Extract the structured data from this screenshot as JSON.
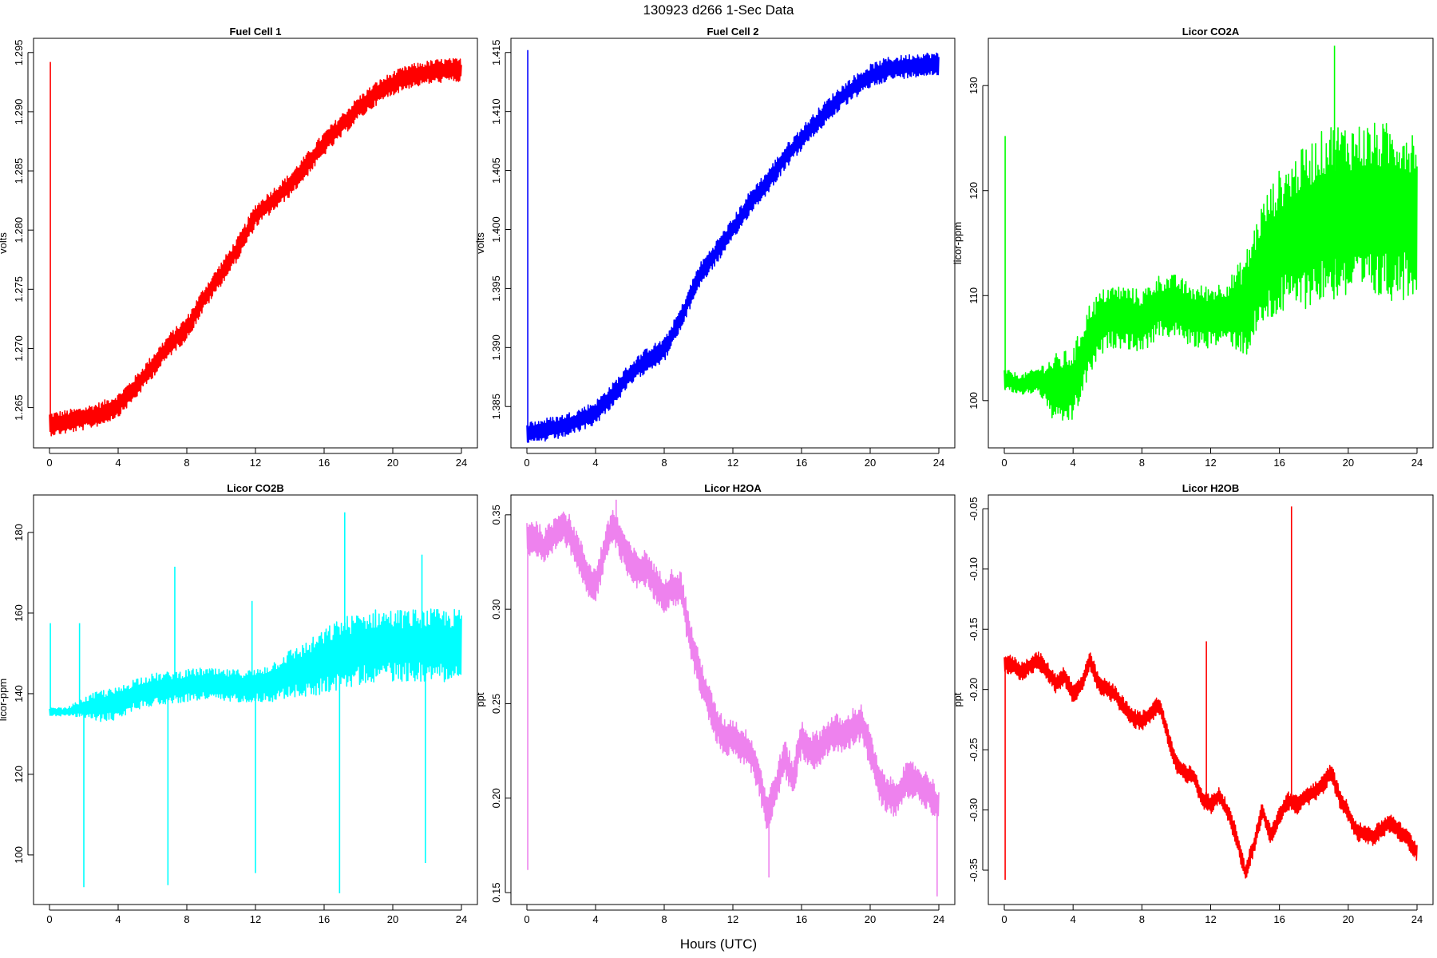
{
  "figure": {
    "title": "130923   d266   1-Sec Data",
    "xlabel": "Hours (UTC)"
  },
  "chart_data": [
    {
      "type": "line",
      "title": "Fuel Cell 1",
      "ylabel": "volts",
      "color": "#ff0000",
      "xlim": [
        0,
        24
      ],
      "xticks": [
        "0",
        "4",
        "8",
        "12",
        "16",
        "20",
        "24"
      ],
      "ylim": [
        1.2616,
        1.2962
      ],
      "yticks": [
        "1.265",
        "1.270",
        "1.275",
        "1.280",
        "1.285",
        "1.290",
        "1.295"
      ],
      "series": [
        {
          "x": [
            0,
            1,
            2,
            3,
            4,
            5,
            6,
            7,
            8,
            9,
            10,
            11,
            12,
            13,
            14,
            15,
            16,
            17,
            18,
            19,
            20,
            21,
            22,
            23,
            24
          ],
          "y": [
            1.2636,
            1.2638,
            1.2641,
            1.2645,
            1.2652,
            1.2667,
            1.2685,
            1.2703,
            1.2717,
            1.2742,
            1.2763,
            1.2785,
            1.2812,
            1.2825,
            1.2838,
            1.2855,
            1.2873,
            1.2888,
            1.2903,
            1.2915,
            1.2924,
            1.293,
            1.2933,
            1.2935,
            1.2935
          ],
          "spread": 0.001
        }
      ],
      "spikes": [
        {
          "x": 0.05,
          "y": [
            1.263,
            1.2942
          ]
        }
      ]
    },
    {
      "type": "line",
      "title": "Fuel Cell 2",
      "ylabel": "volts",
      "color": "#0000ff",
      "xlim": [
        0,
        24
      ],
      "xticks": [
        "0",
        "4",
        "8",
        "12",
        "16",
        "20",
        "24"
      ],
      "ylim": [
        1.3815,
        1.4162
      ],
      "yticks": [
        "1.385",
        "1.390",
        "1.395",
        "1.400",
        "1.405",
        "1.410",
        "1.415"
      ],
      "series": [
        {
          "x": [
            0,
            1,
            2,
            3,
            4,
            5,
            6,
            7,
            8,
            9,
            10,
            11,
            12,
            13,
            14,
            15,
            16,
            17,
            18,
            19,
            20,
            21,
            22,
            23,
            24
          ],
          "y": [
            1.3827,
            1.383,
            1.3833,
            1.3838,
            1.3845,
            1.386,
            1.3877,
            1.389,
            1.3898,
            1.3925,
            1.396,
            1.398,
            1.4,
            1.4023,
            1.404,
            1.406,
            1.4077,
            1.4093,
            1.4108,
            1.412,
            1.413,
            1.4136,
            1.4138,
            1.414,
            1.414
          ],
          "spread": 0.001
        }
      ],
      "spikes": [
        {
          "x": 0.05,
          "y": [
            1.3825,
            1.4152
          ]
        }
      ]
    },
    {
      "type": "line",
      "title": "Licor CO2A",
      "ylabel": "licor-ppm",
      "color": "#00ff00",
      "xlim": [
        0,
        24
      ],
      "xticks": [
        "0",
        "4",
        "8",
        "12",
        "16",
        "20",
        "24"
      ],
      "ylim": [
        95.5,
        134.5
      ],
      "yticks": [
        "100",
        "110",
        "120",
        "130"
      ],
      "series": [
        {
          "x": [
            0,
            1,
            2,
            3,
            4,
            5,
            6,
            7,
            8,
            9,
            10,
            11,
            12,
            13,
            14,
            15,
            16,
            17,
            18,
            19,
            20,
            21,
            22,
            23,
            24
          ],
          "y": [
            102,
            101.5,
            102,
            101,
            101.5,
            106,
            108,
            108,
            107.5,
            109,
            109,
            108,
            108,
            108.5,
            109,
            113,
            115,
            116,
            117,
            118,
            118,
            118,
            118,
            118,
            118
          ],
          "spread": [
            1,
            1,
            1.2,
            3.5,
            3.5,
            3.5,
            3,
            3,
            3,
            3,
            3,
            3,
            3,
            3,
            5,
            6,
            7,
            7.5,
            8,
            8.5,
            8.5,
            8.5,
            8.5,
            8.5,
            8
          ]
        }
      ],
      "spikes": [
        {
          "x": 0.05,
          "y": [
            101,
            125.2
          ]
        },
        {
          "x": 19.2,
          "y": [
            112,
            133.8
          ]
        }
      ]
    },
    {
      "type": "line",
      "title": "Licor CO2B",
      "ylabel": "licor-ppm",
      "color": "#00ffff",
      "xlim": [
        0,
        24
      ],
      "xticks": [
        "0",
        "4",
        "8",
        "12",
        "16",
        "20",
        "24"
      ],
      "ylim": [
        87.7,
        189.3
      ],
      "yticks": [
        "100",
        "120",
        "140",
        "160",
        "180"
      ],
      "series": [
        {
          "x": [
            0,
            1,
            2,
            3,
            4,
            5,
            6,
            7,
            8,
            9,
            10,
            11,
            12,
            13,
            14,
            15,
            16,
            17,
            18,
            19,
            20,
            21,
            22,
            23,
            24
          ],
          "y": [
            135.5,
            135.5,
            136.5,
            137,
            137.5,
            140,
            141,
            141.5,
            142,
            142.5,
            142,
            142,
            142,
            143,
            145,
            146,
            148,
            150,
            151,
            152,
            152,
            152,
            152,
            152,
            152
          ],
          "spread": [
            1,
            1,
            2.5,
            4,
            4,
            4,
            4,
            4,
            4,
            4,
            4,
            4,
            4,
            5,
            6,
            7,
            8,
            9,
            9,
            9,
            9,
            9,
            9,
            9,
            9
          ]
        }
      ],
      "spikes": [
        {
          "x": 0.05,
          "y": [
            136,
            157.5
          ]
        },
        {
          "x": 1.75,
          "y": [
            135,
            157.5
          ]
        },
        {
          "x": 2.0,
          "y": [
            92,
            137
          ]
        },
        {
          "x": 6.9,
          "y": [
            92.5,
            142
          ]
        },
        {
          "x": 7.3,
          "y": [
            140,
            171.5
          ]
        },
        {
          "x": 11.8,
          "y": [
            142,
            163
          ]
        },
        {
          "x": 12.0,
          "y": [
            95.5,
            142
          ]
        },
        {
          "x": 16.9,
          "y": [
            90.5,
            148
          ]
        },
        {
          "x": 17.2,
          "y": [
            148,
            185
          ]
        },
        {
          "x": 21.7,
          "y": [
            150,
            174.5
          ]
        },
        {
          "x": 21.9,
          "y": [
            98,
            150
          ]
        }
      ]
    },
    {
      "type": "line",
      "title": "Licor H2OA",
      "ylabel": "ppt",
      "color": "#ee82ee",
      "xlim": [
        0,
        24
      ],
      "xticks": [
        "0",
        "4",
        "8",
        "12",
        "16",
        "20",
        "24"
      ],
      "ylim": [
        0.1437,
        0.3605
      ],
      "yticks": [
        "0.15",
        "0.20",
        "0.25",
        "0.30",
        "0.35"
      ],
      "series": [
        {
          "x": [
            0,
            0.5,
            1,
            1.5,
            2,
            2.5,
            3,
            3.5,
            4,
            4.5,
            5,
            5.5,
            6,
            6.5,
            7,
            7.5,
            8,
            8.5,
            9,
            9.5,
            10,
            10.5,
            11,
            11.5,
            12,
            12.5,
            13,
            13.5,
            14,
            14.5,
            15,
            15.5,
            16,
            16.5,
            17,
            17.5,
            18,
            18.5,
            19,
            19.5,
            20,
            20.5,
            21,
            21.5,
            22,
            22.5,
            23,
            23.5,
            24
          ],
          "y": [
            0.338,
            0.338,
            0.332,
            0.338,
            0.345,
            0.34,
            0.33,
            0.318,
            0.312,
            0.33,
            0.345,
            0.335,
            0.325,
            0.32,
            0.322,
            0.313,
            0.308,
            0.312,
            0.31,
            0.285,
            0.268,
            0.253,
            0.24,
            0.232,
            0.233,
            0.228,
            0.225,
            0.212,
            0.192,
            0.205,
            0.222,
            0.21,
            0.232,
            0.225,
            0.226,
            0.232,
            0.235,
            0.232,
            0.238,
            0.24,
            0.226,
            0.208,
            0.202,
            0.2,
            0.208,
            0.21,
            0.206,
            0.203,
            0.195
          ],
          "spread": 0.01
        }
      ],
      "spikes": [
        {
          "x": 0.05,
          "y": [
            0.162,
            0.34
          ]
        },
        {
          "x": 5.2,
          "y": [
            0.335,
            0.358
          ]
        },
        {
          "x": 14.1,
          "y": [
            0.158,
            0.2
          ]
        },
        {
          "x": 23.9,
          "y": [
            0.148,
            0.2
          ]
        }
      ]
    },
    {
      "type": "line",
      "title": "Licor H2OB",
      "ylabel": "ppt",
      "color": "#ff0000",
      "xlim": [
        0,
        24
      ],
      "xticks": [
        "0",
        "4",
        "8",
        "12",
        "16",
        "20",
        "24"
      ],
      "ylim": [
        -0.3785,
        -0.0385
      ],
      "yticks": [
        "-0.35",
        "-0.30",
        "-0.25",
        "-0.20",
        "-0.15",
        "-0.10",
        "-0.05"
      ],
      "series": [
        {
          "x": [
            0,
            0.5,
            1,
            1.5,
            2,
            2.5,
            3,
            3.5,
            4,
            4.5,
            5,
            5.5,
            6,
            6.5,
            7,
            7.5,
            8,
            8.5,
            9,
            9.5,
            10,
            10.5,
            11,
            11.5,
            12,
            12.5,
            13,
            13.5,
            14,
            14.5,
            15,
            15.5,
            16,
            16.5,
            17,
            17.5,
            18,
            18.5,
            19,
            19.5,
            20,
            20.5,
            21,
            21.5,
            22,
            22.5,
            23,
            23.5,
            24
          ],
          "y": [
            -0.178,
            -0.18,
            -0.185,
            -0.18,
            -0.176,
            -0.185,
            -0.195,
            -0.188,
            -0.204,
            -0.196,
            -0.176,
            -0.196,
            -0.2,
            -0.205,
            -0.216,
            -0.224,
            -0.226,
            -0.22,
            -0.212,
            -0.238,
            -0.262,
            -0.27,
            -0.272,
            -0.29,
            -0.296,
            -0.288,
            -0.302,
            -0.322,
            -0.352,
            -0.33,
            -0.3,
            -0.322,
            -0.305,
            -0.292,
            -0.296,
            -0.29,
            -0.285,
            -0.28,
            -0.268,
            -0.29,
            -0.302,
            -0.318,
            -0.32,
            -0.322,
            -0.315,
            -0.31,
            -0.318,
            -0.325,
            -0.335
          ],
          "spread": 0.008
        }
      ],
      "spikes": [
        {
          "x": 0.05,
          "y": [
            -0.358,
            -0.178
          ]
        },
        {
          "x": 11.75,
          "y": [
            -0.295,
            -0.16
          ]
        },
        {
          "x": 16.7,
          "y": [
            -0.3,
            -0.048
          ]
        }
      ]
    }
  ]
}
